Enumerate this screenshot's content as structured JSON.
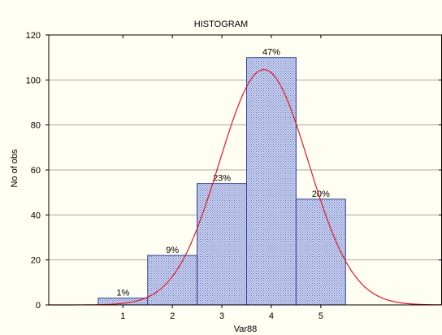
{
  "chart_data": {
    "type": "bar",
    "title": "HISTOGRAM",
    "xlabel": "Var88",
    "ylabel": "No of obs",
    "categories": [
      "1",
      "2",
      "3",
      "4",
      "5"
    ],
    "values": [
      3,
      22,
      54,
      110,
      47
    ],
    "data_labels": [
      "1%",
      "9%",
      "23%",
      "47%",
      "20%"
    ],
    "ylim": [
      0,
      120
    ],
    "yticks": [
      0,
      20,
      40,
      60,
      80,
      100,
      120
    ],
    "grid": true,
    "bar_color": "#aebce6",
    "bar_edge_color": "#2e3f99",
    "curve_color": "#e0182a",
    "normal_fit": {
      "label": "",
      "mean": 3.85,
      "sd": 0.9
    }
  }
}
